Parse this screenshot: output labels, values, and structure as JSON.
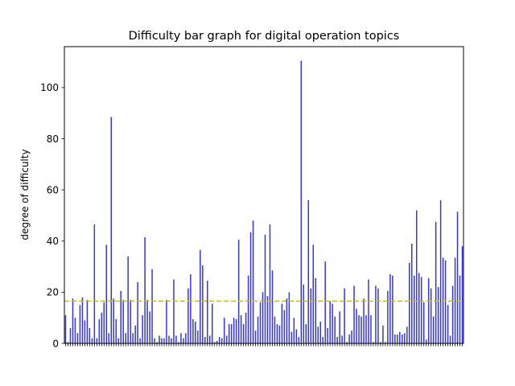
{
  "chart_data": {
    "type": "bar",
    "title": "Difficulty bar graph for digital operation topics",
    "xlabel": "",
    "ylabel": "degree of difficulty",
    "ylim": [
      0,
      116
    ],
    "yticks": [
      0,
      20,
      40,
      60,
      80,
      100
    ],
    "x_tick_labels_visible": false,
    "colors": {
      "bar": "#3333ee",
      "mean_line": "#bfbf00"
    },
    "mean_line": {
      "value": 16.5,
      "style": "dashed"
    },
    "values": [
      11,
      0.5,
      6,
      17.5,
      10,
      4,
      15,
      18,
      9,
      17,
      6,
      2,
      46.5,
      2,
      9.5,
      12,
      16,
      38.5,
      4,
      88.5,
      17.5,
      9.5,
      2,
      20.5,
      17,
      4,
      34,
      17,
      4,
      7,
      24,
      2,
      11,
      41.5,
      17,
      12.5,
      29,
      2,
      0.5,
      3,
      2,
      2,
      17,
      3,
      2,
      25,
      3,
      0.5,
      4,
      2,
      4,
      21.5,
      27,
      9.5,
      8.5,
      5,
      36.5,
      30.5,
      2.5,
      24.5,
      3,
      15.5,
      0.5,
      1,
      2.5,
      2,
      10,
      3,
      7.5,
      7.5,
      10,
      9.5,
      40.5,
      11,
      7.5,
      12,
      26.5,
      43.5,
      48,
      5,
      10.5,
      16,
      20,
      42.5,
      18.5,
      46.5,
      28.5,
      10.5,
      7.5,
      7,
      15.5,
      13,
      17.5,
      20,
      4.5,
      10,
      5.5,
      2.5,
      110.5,
      23,
      7.5,
      56,
      21.5,
      38.5,
      25.5,
      6.5,
      8.5,
      2.5,
      32,
      6,
      16.5,
      15.5,
      10.5,
      2.5,
      12.5,
      3,
      21.5,
      0.5,
      3.5,
      5,
      22.5,
      13.5,
      11,
      10.5,
      17.5,
      11,
      25,
      11,
      0.5,
      22.5,
      21.5,
      0.5,
      7,
      0.5,
      20.5,
      27,
      26.5,
      3.5,
      3.5,
      4.5,
      3.5,
      4,
      6.5,
      31.5,
      39,
      26.5,
      52,
      27.5,
      26,
      16,
      1.5,
      25.5,
      21.5,
      10.5,
      47.5,
      22,
      56,
      33.5,
      32.5,
      15,
      3,
      22.5,
      33.5,
      51.5,
      26.5,
      38
    ]
  }
}
